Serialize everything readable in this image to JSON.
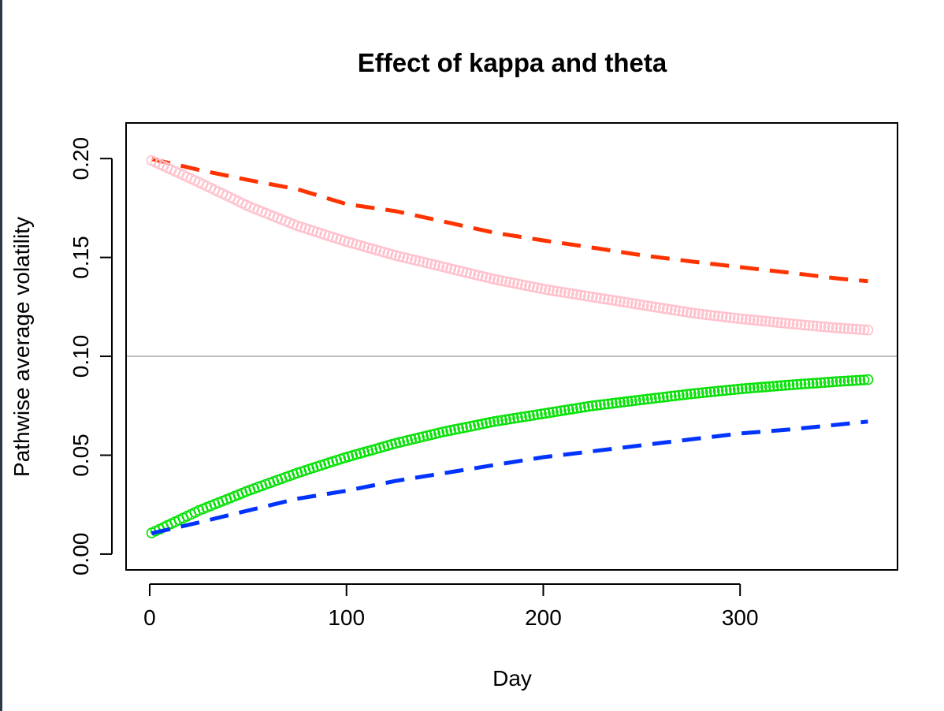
{
  "chart_data": {
    "type": "line",
    "title": "Effect of kappa and theta",
    "xlabel": "Day",
    "ylabel": "Pathwise average volatility",
    "xlim": [
      -12,
      380
    ],
    "ylim": [
      -0.008,
      0.218
    ],
    "x_ticks": [
      0,
      100,
      200,
      300
    ],
    "x_tick_labels": [
      "0",
      "100",
      "200",
      "300"
    ],
    "y_ticks": [
      0.0,
      0.05,
      0.1,
      0.15,
      0.2
    ],
    "y_tick_labels": [
      "0.00",
      "0.05",
      "0.10",
      "0.15",
      "0.20"
    ],
    "grid": false,
    "reference_line": {
      "y": 0.1,
      "color": "#bebebe"
    },
    "series": [
      {
        "color": "#ff3300",
        "style": "dashed",
        "x": [
          1,
          25,
          50,
          75,
          100,
          125,
          150,
          175,
          200,
          225,
          250,
          275,
          300,
          325,
          350,
          365
        ],
        "y": [
          0.1998,
          0.1943,
          0.1892,
          0.1845,
          0.177,
          0.1734,
          0.168,
          0.1625,
          0.1586,
          0.155,
          0.1511,
          0.148,
          0.1451,
          0.1423,
          0.1393,
          0.138
        ]
      },
      {
        "color": "#ffc0cb",
        "style": "circles",
        "x": [
          1,
          25,
          50,
          75,
          100,
          125,
          150,
          175,
          200,
          225,
          250,
          275,
          300,
          325,
          350,
          365
        ],
        "y": [
          0.199,
          0.188,
          0.176,
          0.166,
          0.158,
          0.151,
          0.145,
          0.139,
          0.134,
          0.13,
          0.126,
          0.122,
          0.119,
          0.1165,
          0.1143,
          0.1133
        ]
      },
      {
        "color": "#00e000",
        "style": "circles",
        "x": [
          1,
          25,
          50,
          75,
          100,
          125,
          150,
          175,
          200,
          225,
          250,
          275,
          300,
          325,
          350,
          365
        ],
        "y": [
          0.0107,
          0.022,
          0.032,
          0.041,
          0.049,
          0.056,
          0.062,
          0.067,
          0.071,
          0.075,
          0.078,
          0.081,
          0.0835,
          0.0855,
          0.0873,
          0.0882
        ]
      },
      {
        "color": "#0033ff",
        "style": "dashed",
        "x": [
          1,
          25,
          50,
          75,
          100,
          125,
          150,
          175,
          200,
          225,
          250,
          275,
          300,
          325,
          350,
          365
        ],
        "y": [
          0.0105,
          0.016,
          0.022,
          0.028,
          0.032,
          0.037,
          0.041,
          0.045,
          0.049,
          0.052,
          0.055,
          0.058,
          0.061,
          0.063,
          0.0655,
          0.067
        ]
      }
    ]
  }
}
